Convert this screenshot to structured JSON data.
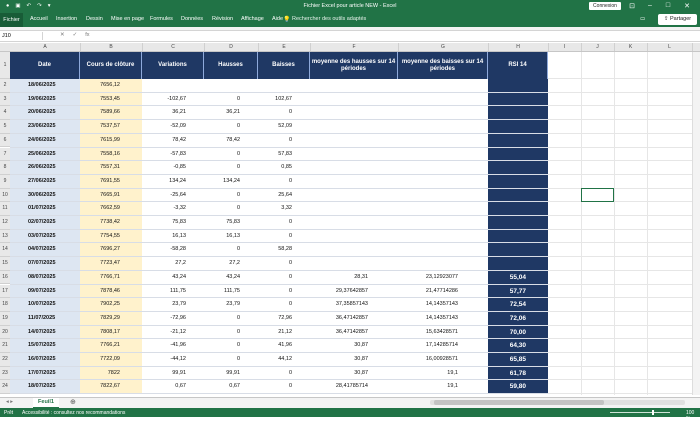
{
  "window": {
    "title": "Fichier Excel pour article NEW  -  Excel",
    "connexion_label": "Connexion"
  },
  "ribbon": {
    "tabs": [
      "Fichier",
      "Accueil",
      "Insertion",
      "Dessin",
      "Mise en page",
      "Formules",
      "Données",
      "Révision",
      "Affichage",
      "Aide"
    ],
    "search_placeholder": "Rechercher des outils adaptés",
    "share_label": "Partager"
  },
  "formula_bar": {
    "name_box": "J10",
    "formula": ""
  },
  "columns": [
    "A",
    "B",
    "C",
    "D",
    "E",
    "F",
    "G",
    "H",
    "I",
    "J",
    "K",
    "L"
  ],
  "table": {
    "headers": [
      "Date",
      "Cours de clôture",
      "Variations",
      "Hausses",
      "Baisses",
      "moyenne des hausses sur 14 périodes",
      "moyenne des baisses sur 14 périodes",
      "RSI 14"
    ],
    "rows": [
      [
        "18/06/2025",
        "7656,12",
        "",
        "",
        "",
        "",
        "",
        ""
      ],
      [
        "19/06/2025",
        "7553,45",
        "-102,67",
        "0",
        "102,67",
        "",
        "",
        ""
      ],
      [
        "20/06/2025",
        "7589,66",
        "36,21",
        "36,21",
        "0",
        "",
        "",
        ""
      ],
      [
        "23/06/2025",
        "7537,57",
        "-52,09",
        "0",
        "52,09",
        "",
        "",
        ""
      ],
      [
        "24/06/2025",
        "7615,99",
        "78,42",
        "78,42",
        "0",
        "",
        "",
        ""
      ],
      [
        "25/06/2025",
        "7558,16",
        "-57,83",
        "0",
        "57,83",
        "",
        "",
        ""
      ],
      [
        "26/06/2025",
        "7557,31",
        "-0,85",
        "0",
        "0,85",
        "",
        "",
        ""
      ],
      [
        "27/06/2025",
        "7691,55",
        "134,24",
        "134,24",
        "0",
        "",
        "",
        ""
      ],
      [
        "30/06/2025",
        "7665,91",
        "-25,64",
        "0",
        "25,64",
        "",
        "",
        ""
      ],
      [
        "01/07/2025",
        "7662,59",
        "-3,32",
        "0",
        "3,32",
        "",
        "",
        ""
      ],
      [
        "02/07/2025",
        "7738,42",
        "75,83",
        "75,83",
        "0",
        "",
        "",
        ""
      ],
      [
        "03/07/2025",
        "7754,55",
        "16,13",
        "16,13",
        "0",
        "",
        "",
        ""
      ],
      [
        "04/07/2025",
        "7696,27",
        "-58,28",
        "0",
        "58,28",
        "",
        "",
        ""
      ],
      [
        "07/07/2025",
        "7723,47",
        "27,2",
        "27,2",
        "0",
        "",
        "",
        ""
      ],
      [
        "08/07/2025",
        "7766,71",
        "43,24",
        "43,24",
        "0",
        "28,31",
        "23,12923077",
        "55,04"
      ],
      [
        "09/07/2025",
        "7878,46",
        "111,75",
        "111,75",
        "0",
        "29,37642857",
        "21,47714286",
        "57,77"
      ],
      [
        "10/07/2025",
        "7902,25",
        "23,79",
        "23,79",
        "0",
        "37,35857143",
        "14,14357143",
        "72,54"
      ],
      [
        "11/07/2025",
        "7829,29",
        "-72,96",
        "0",
        "72,96",
        "36,47142857",
        "14,14357143",
        "72,06"
      ],
      [
        "14/07/2025",
        "7808,17",
        "-21,12",
        "0",
        "21,12",
        "36,47142857",
        "15,63428571",
        "70,00"
      ],
      [
        "15/07/2025",
        "7766,21",
        "-41,96",
        "0",
        "41,96",
        "30,87",
        "17,14285714",
        "64,30"
      ],
      [
        "16/07/2025",
        "7722,09",
        "-44,12",
        "0",
        "44,12",
        "30,87",
        "16,00928571",
        "65,85"
      ],
      [
        "17/07/2025",
        "7822",
        "99,91",
        "99,91",
        "0",
        "30,87",
        "19,1",
        "61,78"
      ],
      [
        "18/07/2025",
        "7822,67",
        "0,67",
        "0,67",
        "0",
        "28,41785714",
        "19,1",
        "59,80"
      ]
    ],
    "row_numbers": [
      "1",
      "2",
      "3",
      "4",
      "5",
      "6",
      "7",
      "8",
      "9",
      "10",
      "11",
      "12",
      "13",
      "14",
      "15",
      "16",
      "17",
      "18",
      "19",
      "20",
      "21",
      "22",
      "23",
      "24"
    ]
  },
  "sheet_tabs": [
    "Feuil1"
  ],
  "status": {
    "ready": "Prêt",
    "accessibility": "Accessibilité : consultez nos recommandations",
    "zoom": "100 %"
  }
}
